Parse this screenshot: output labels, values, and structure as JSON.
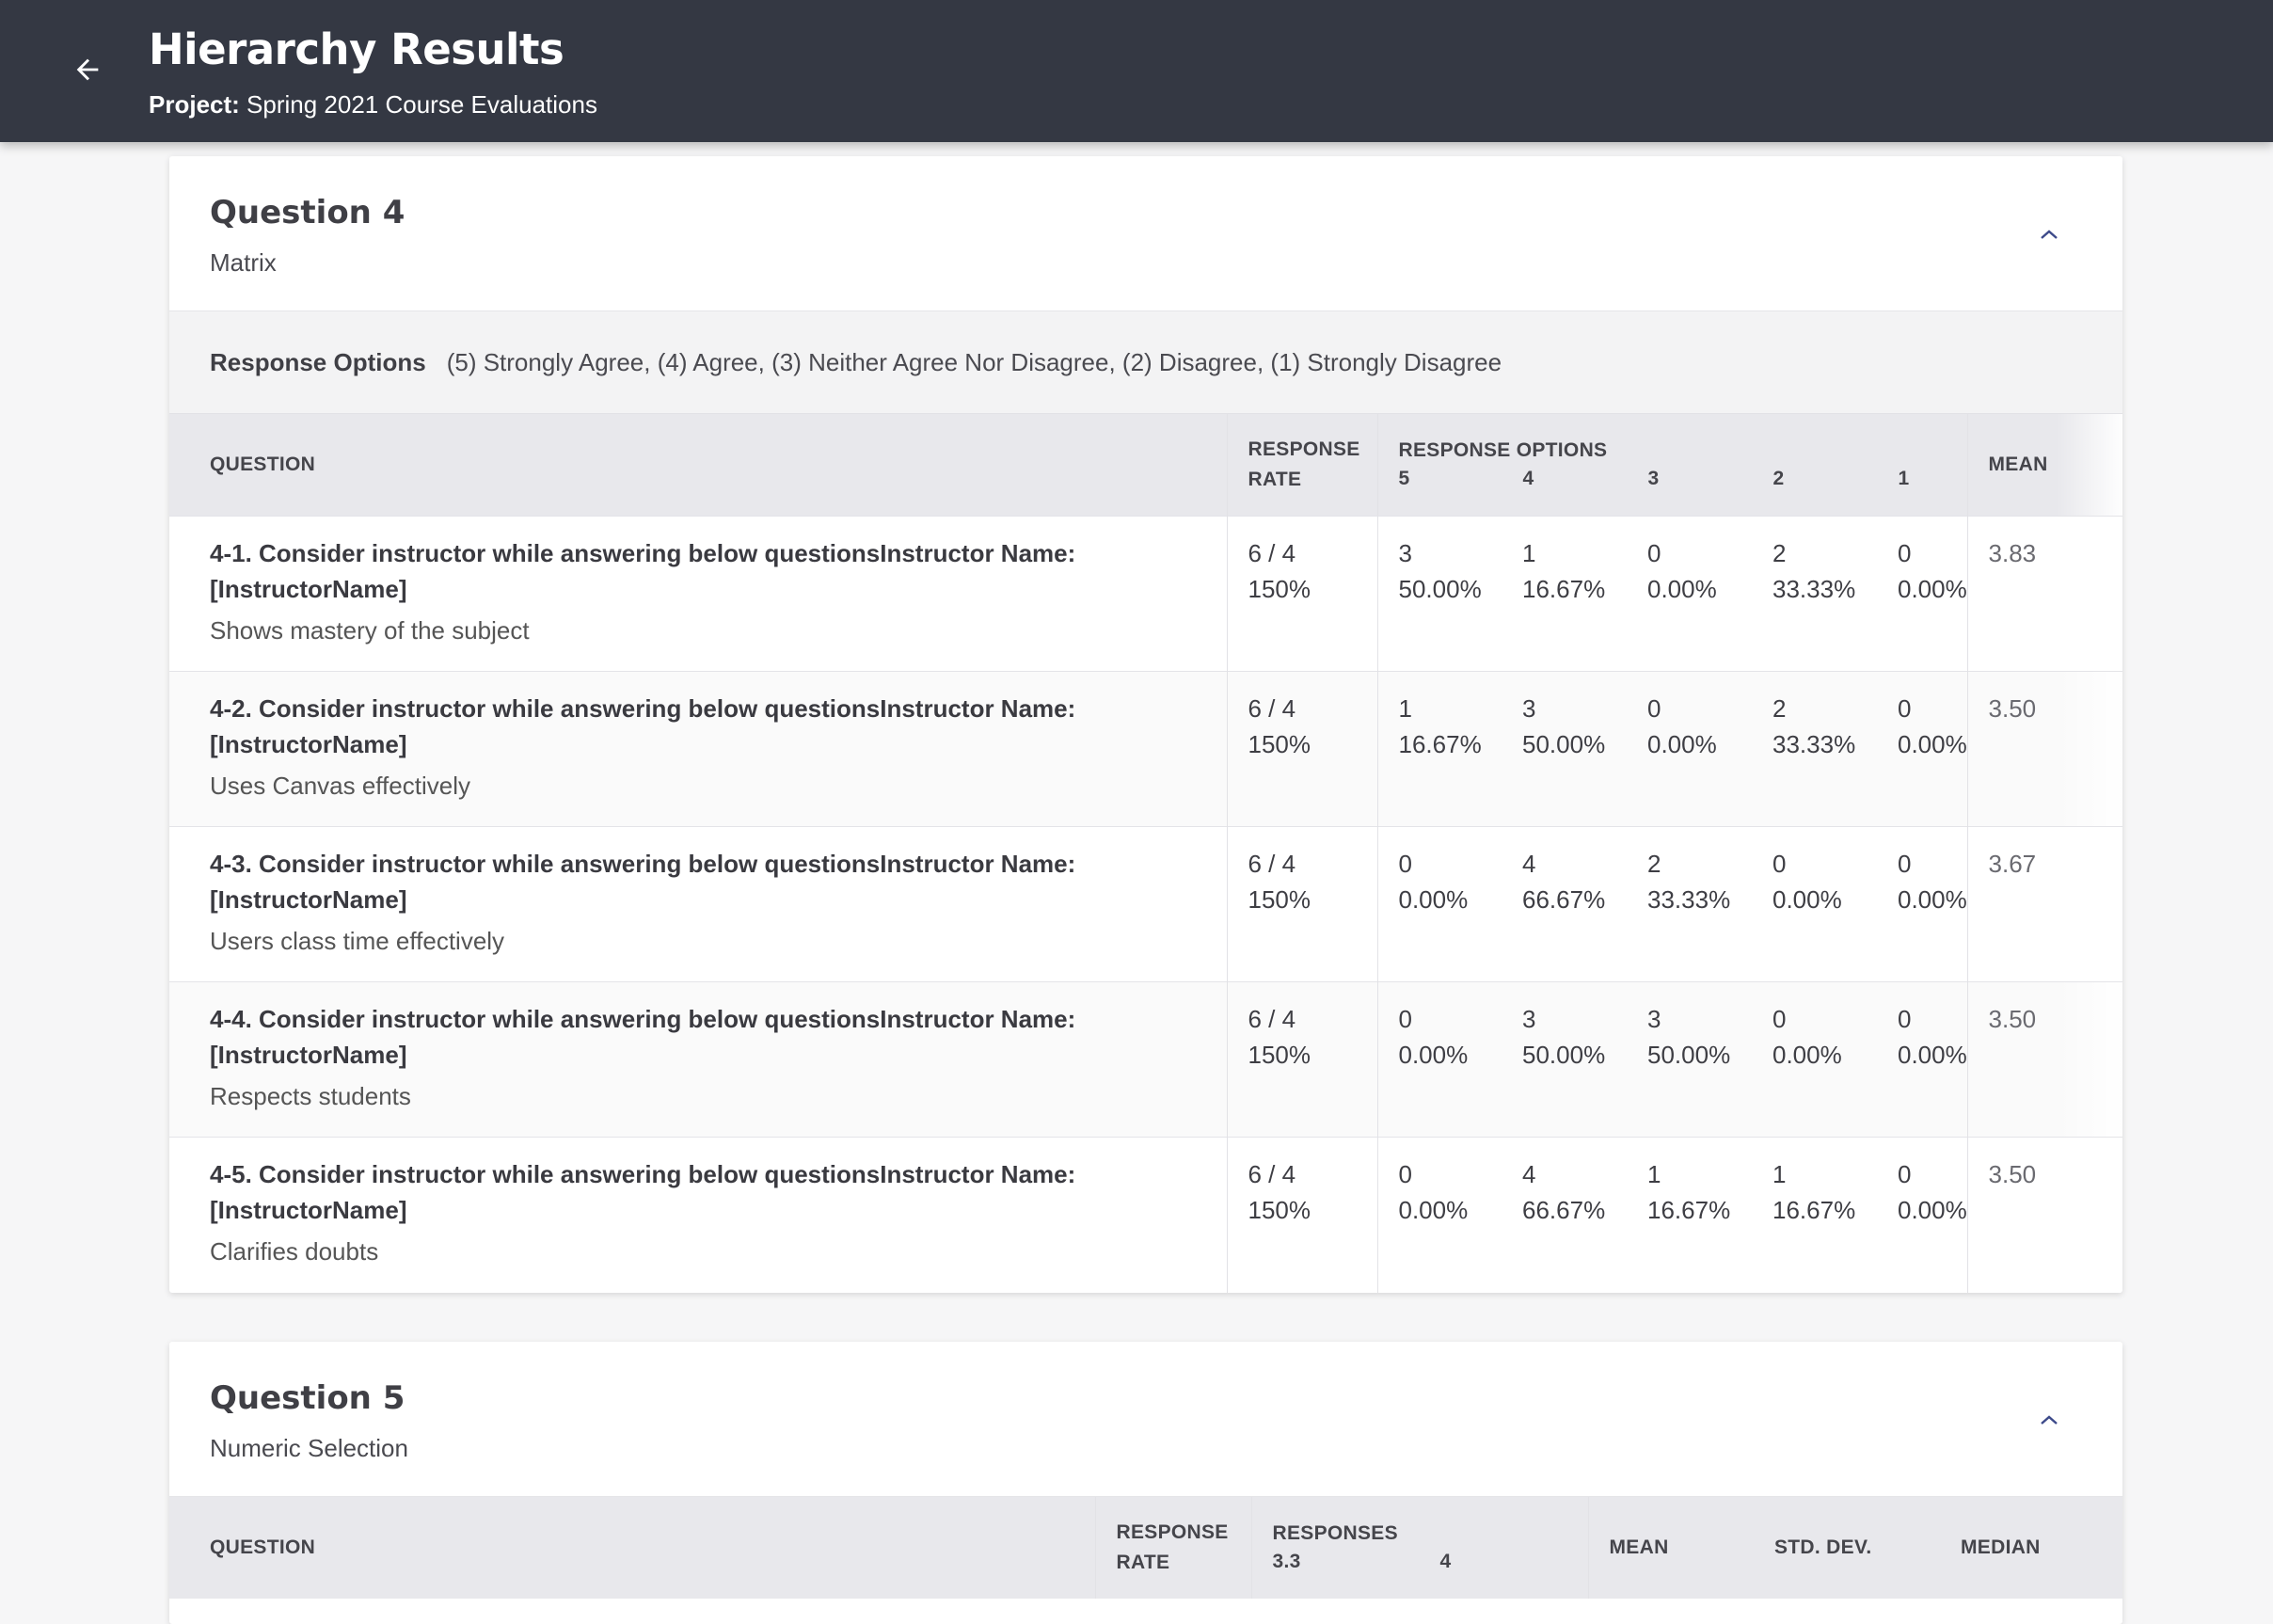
{
  "header": {
    "title": "Hierarchy Results",
    "project_label": "Project:",
    "project_name": "Spring 2021 Course Evaluations"
  },
  "q4": {
    "title": "Question 4",
    "type": "Matrix",
    "response_options_label": "Response Options",
    "response_options_text": "(5) Strongly Agree, (4) Agree, (3) Neither Agree Nor Disagree, (2) Disagree, (1) Strongly Disagree",
    "columns": {
      "question": "QUESTION",
      "response_rate_1": "RESPONSE",
      "response_rate_2": "RATE",
      "response_options": "RESPONSE OPTIONS",
      "opt5": "5",
      "opt4": "4",
      "opt3": "3",
      "opt2": "2",
      "opt1": "1",
      "mean": "MEAN"
    },
    "rows": [
      {
        "title_1": "4-1. Consider instructor while answering below questionsInstructor Name:",
        "title_2": "[InstructorName]",
        "sub": "Shows mastery of the subject",
        "rr_count": "6 / 4",
        "rr_pct": "150%",
        "o5": [
          "3",
          "50.00%"
        ],
        "o4": [
          "1",
          "16.67%"
        ],
        "o3": [
          "0",
          "0.00%"
        ],
        "o2": [
          "2",
          "33.33%"
        ],
        "o1": [
          "0",
          "0.00%"
        ],
        "mean": "3.83"
      },
      {
        "title_1": "4-2. Consider instructor while answering below questionsInstructor Name:",
        "title_2": "[InstructorName]",
        "sub": "Uses Canvas effectively",
        "rr_count": "6 / 4",
        "rr_pct": "150%",
        "o5": [
          "1",
          "16.67%"
        ],
        "o4": [
          "3",
          "50.00%"
        ],
        "o3": [
          "0",
          "0.00%"
        ],
        "o2": [
          "2",
          "33.33%"
        ],
        "o1": [
          "0",
          "0.00%"
        ],
        "mean": "3.50"
      },
      {
        "title_1": "4-3. Consider instructor while answering below questionsInstructor Name:",
        "title_2": "[InstructorName]",
        "sub": "Users class time effectively",
        "rr_count": "6 / 4",
        "rr_pct": "150%",
        "o5": [
          "0",
          "0.00%"
        ],
        "o4": [
          "4",
          "66.67%"
        ],
        "o3": [
          "2",
          "33.33%"
        ],
        "o2": [
          "0",
          "0.00%"
        ],
        "o1": [
          "0",
          "0.00%"
        ],
        "mean": "3.67"
      },
      {
        "title_1": "4-4. Consider instructor while answering below questionsInstructor Name:",
        "title_2": "[InstructorName]",
        "sub": "Respects students",
        "rr_count": "6 / 4",
        "rr_pct": "150%",
        "o5": [
          "0",
          "0.00%"
        ],
        "o4": [
          "3",
          "50.00%"
        ],
        "o3": [
          "3",
          "50.00%"
        ],
        "o2": [
          "0",
          "0.00%"
        ],
        "o1": [
          "0",
          "0.00%"
        ],
        "mean": "3.50"
      },
      {
        "title_1": "4-5. Consider instructor while answering below questionsInstructor Name:",
        "title_2": "[InstructorName]",
        "sub": "Clarifies doubts",
        "rr_count": "6 / 4",
        "rr_pct": "150%",
        "o5": [
          "0",
          "0.00%"
        ],
        "o4": [
          "4",
          "66.67%"
        ],
        "o3": [
          "1",
          "16.67%"
        ],
        "o2": [
          "1",
          "16.67%"
        ],
        "o1": [
          "0",
          "0.00%"
        ],
        "mean": "3.50"
      }
    ]
  },
  "q5": {
    "title": "Question 5",
    "type": "Numeric Selection",
    "columns": {
      "question": "QUESTION",
      "response_rate_1": "RESPONSE",
      "response_rate_2": "RATE",
      "responses": "RESPONSES",
      "val1": "3.3",
      "val2": "4",
      "mean": "MEAN",
      "std_dev": "STD. DEV.",
      "median": "MEDIAN"
    }
  }
}
